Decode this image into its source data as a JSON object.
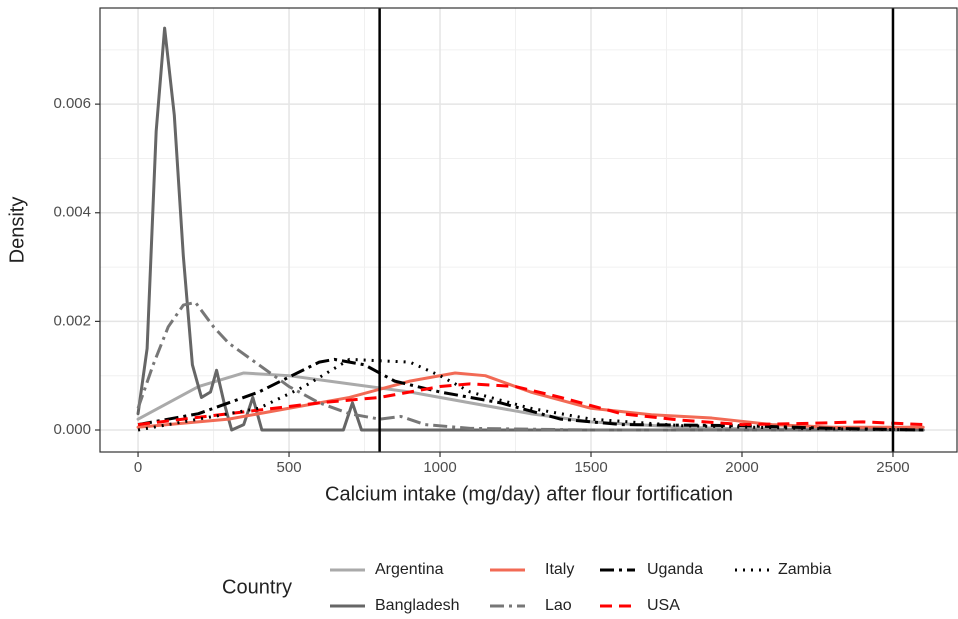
{
  "chart_data": {
    "type": "line",
    "x_label": "Calcium intake (mg/day) after flour fortification",
    "y_label": "Density",
    "legend_title": "Country",
    "xlim": [
      -126,
      2712
    ],
    "ylim": [
      -0.000405,
      0.00777
    ],
    "xticks": [
      0,
      500,
      1000,
      1500,
      2000,
      2500
    ],
    "yticks": [
      {
        "value": 0,
        "label": "0.000"
      },
      {
        "value": 0.002,
        "label": "0.002"
      },
      {
        "value": 0.004,
        "label": "0.004"
      },
      {
        "value": 0.006,
        "label": "0.006"
      }
    ],
    "grid": true,
    "vlines": [
      800,
      2500
    ],
    "series": [
      {
        "name": "Argentina",
        "color": "#aaaaaa",
        "dash": "none",
        "x": [
          0,
          200,
          350,
          500,
          700,
          900,
          1100,
          1300,
          1500,
          1800,
          2000,
          2600
        ],
        "values": [
          0.0002,
          0.0008,
          0.00105,
          0.001,
          0.00085,
          0.0007,
          0.0005,
          0.0003,
          0.00015,
          5e-05,
          2e-05,
          0
        ]
      },
      {
        "name": "Bangladesh",
        "color": "#666666",
        "dash": "none",
        "x": [
          0,
          30,
          60,
          88,
          120,
          150,
          180,
          210,
          240,
          260,
          285,
          310,
          350,
          380,
          410,
          450,
          680,
          710,
          740,
          800,
          2600
        ],
        "values": [
          0.0003,
          0.0015,
          0.0055,
          0.0074,
          0.0058,
          0.0032,
          0.0012,
          0.0006,
          0.0007,
          0.0011,
          0.0005,
          0,
          0.0001,
          0.0006,
          0,
          0,
          0,
          0.0005,
          0,
          0,
          0
        ]
      },
      {
        "name": "Italy",
        "color": "#f26a55",
        "dash": "none",
        "x": [
          0,
          300,
          500,
          700,
          900,
          1050,
          1150,
          1300,
          1500,
          1700,
          1900,
          2100,
          2300,
          2600
        ],
        "values": [
          5e-05,
          0.0002,
          0.0004,
          0.0006,
          0.0009,
          0.00105,
          0.001,
          0.0007,
          0.0004,
          0.00028,
          0.00022,
          0.0001,
          5e-05,
          5e-05
        ]
      },
      {
        "name": "Lao",
        "color": "#777777",
        "dash": "14,5,3,5",
        "x": [
          0,
          50,
          100,
          150,
          190,
          250,
          300,
          400,
          500,
          600,
          700,
          800,
          870,
          950,
          1100,
          1500,
          2600
        ],
        "values": [
          0.0004,
          0.0012,
          0.0019,
          0.0023,
          0.00235,
          0.0019,
          0.0016,
          0.0012,
          0.0008,
          0.0005,
          0.0003,
          0.0002,
          0.00025,
          0.0001,
          3e-05,
          0,
          0
        ]
      },
      {
        "name": "Uganda",
        "color": "#000000",
        "dash": "14,5,3,5",
        "x": [
          0,
          200,
          400,
          600,
          650,
          750,
          850,
          1000,
          1200,
          1400,
          1600,
          2000,
          2300,
          2600
        ],
        "values": [
          0.0001,
          0.0003,
          0.0007,
          0.00125,
          0.0013,
          0.0012,
          0.0009,
          0.0007,
          0.0005,
          0.0002,
          0.0001,
          8e-05,
          3e-05,
          0
        ]
      },
      {
        "name": "USA",
        "color": "#ff0000",
        "dash": "12,7",
        "x": [
          0,
          300,
          600,
          800,
          1000,
          1100,
          1250,
          1400,
          1600,
          1800,
          2000,
          2200,
          2400,
          2600
        ],
        "values": [
          0.0001,
          0.0003,
          0.0005,
          0.0006,
          0.0008,
          0.00085,
          0.0008,
          0.0006,
          0.0003,
          0.00018,
          0.0001,
          0.00012,
          0.00015,
          0.0001
        ]
      },
      {
        "name": "Zambia",
        "color": "#000000",
        "dash": "2,6",
        "x": [
          0,
          200,
          400,
          550,
          700,
          900,
          1000,
          1100,
          1300,
          1500,
          1800,
          2200,
          2600
        ],
        "values": [
          0,
          0.0002,
          0.0004,
          0.0008,
          0.0013,
          0.00125,
          0.001,
          0.0007,
          0.0004,
          0.0002,
          8e-05,
          3e-05,
          0
        ]
      }
    ]
  }
}
